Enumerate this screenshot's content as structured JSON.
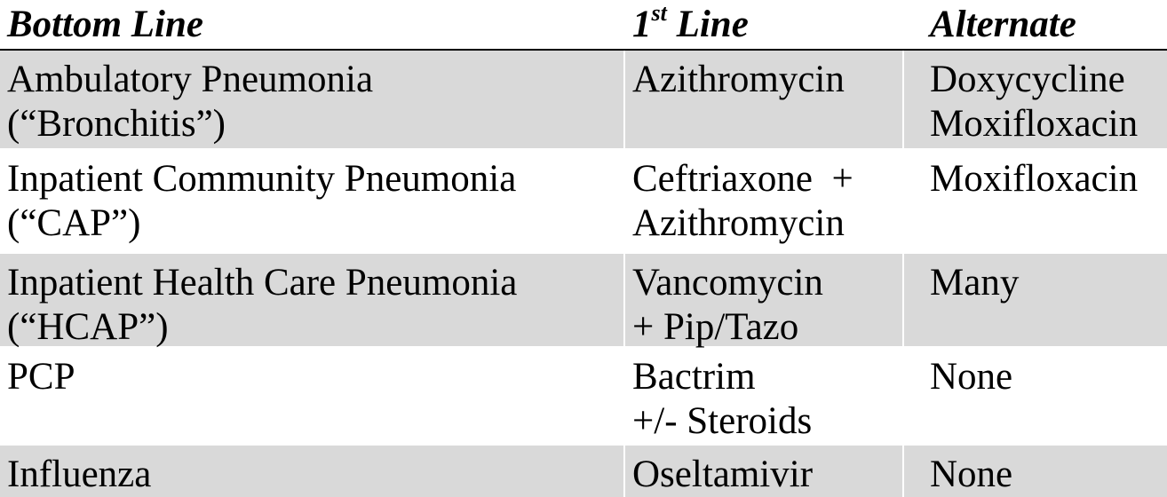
{
  "header": {
    "col1": "Bottom Line",
    "col2_number": "1",
    "col2_sup": "st",
    "col2_rest": " Line",
    "col3": "Alternate"
  },
  "rows": [
    {
      "condition": [
        "Ambulatory Pneumonia",
        "(“Bronchitis”)"
      ],
      "first_line": [
        "Azithromycin"
      ],
      "alternate": [
        "Doxycycline",
        "Moxifloxacin"
      ]
    },
    {
      "condition": [
        "Inpatient Community Pneumonia",
        "(“CAP”)"
      ],
      "first_line": [
        "Ceftriaxone  +",
        "Azithromycin"
      ],
      "alternate": [
        "Moxifloxacin"
      ]
    },
    {
      "condition": [
        "Inpatient Health Care Pneumonia",
        "(“HCAP”)"
      ],
      "first_line": [
        "Vancomycin",
        "+ Pip/Tazo"
      ],
      "alternate": [
        "Many"
      ]
    },
    {
      "condition": [
        "PCP"
      ],
      "first_line": [
        "Bactrim",
        "+/- Steroids"
      ],
      "alternate": [
        "None"
      ]
    },
    {
      "condition": [
        "Influenza"
      ],
      "first_line": [
        "Oseltamivir"
      ],
      "alternate": [
        "None"
      ]
    }
  ]
}
